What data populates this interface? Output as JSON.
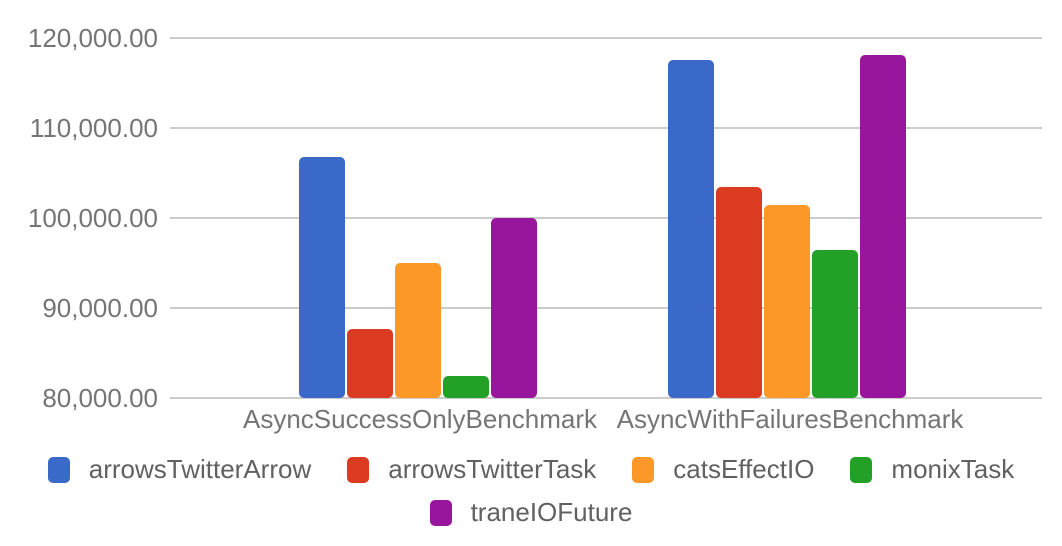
{
  "chart_data": {
    "type": "bar",
    "categories": [
      "AsyncSuccessOnlyBenchmark",
      "AsyncWithFailuresBenchmark"
    ],
    "series": [
      {
        "name": "arrowsTwitterArrow",
        "color": "#3B69C9",
        "values": [
          106800,
          117600
        ]
      },
      {
        "name": "arrowsTwitterTask",
        "color": "#DA3B21",
        "values": [
          87700,
          103400
        ]
      },
      {
        "name": "catsEffectIO",
        "color": "#FB9827",
        "values": [
          95000,
          101500
        ]
      },
      {
        "name": "monixTask",
        "color": "#23A127",
        "values": [
          82400,
          96400
        ]
      },
      {
        "name": "traneIOFuture",
        "color": "#98169E",
        "values": [
          100000,
          118100
        ]
      }
    ],
    "ylim": [
      80000,
      120000
    ],
    "ytick_step": 10000,
    "ytick_labels": [
      "80,000.00",
      "90,000.00",
      "100,000.00",
      "110,000.00",
      "120,000.00"
    ],
    "xlabel": "",
    "ylabel": "",
    "grid": true,
    "legend_position": "bottom"
  },
  "colors": {
    "background": "#ffffff",
    "gridline": "#cccccc",
    "axis_label": "#757575",
    "legend_label": "#616161"
  }
}
